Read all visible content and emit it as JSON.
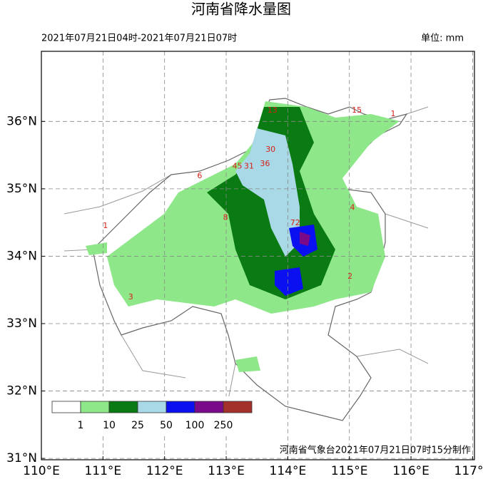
{
  "map": {
    "title": "河南省降水量图",
    "subtitle": "2021年07月21日04时-2021年07月21日07时",
    "unit": "单位: mm",
    "footer": "河南省气象台2021年07月21日07时15分制作",
    "xlim": [
      110,
      117.03
    ],
    "ylim": [
      30.98,
      37.04
    ],
    "xticks": [
      {
        "value": 110,
        "label": "110°E"
      },
      {
        "value": 111,
        "label": "111°E"
      },
      {
        "value": 112,
        "label": "112°E"
      },
      {
        "value": 113,
        "label": "113°E"
      },
      {
        "value": 114,
        "label": "114°E"
      },
      {
        "value": 115,
        "label": "115°E"
      },
      {
        "value": 116,
        "label": "116°E"
      },
      {
        "value": 117,
        "label": "117°E"
      }
    ],
    "yticks": [
      {
        "value": 31,
        "label": "31°N"
      },
      {
        "value": 32,
        "label": "32°N"
      },
      {
        "value": 33,
        "label": "33°N"
      },
      {
        "value": 34,
        "label": "34°N"
      },
      {
        "value": 35,
        "label": "35°N"
      },
      {
        "value": 36,
        "label": "36°N"
      }
    ],
    "grid": true,
    "legend": {
      "colors": [
        "#ffffff",
        "#8ee88a",
        "#0a7a12",
        "#a9d8e6",
        "#0a10f0",
        "#7a0a8a",
        "#a3302a"
      ],
      "labels": [
        1,
        10,
        25,
        50,
        100,
        250
      ]
    },
    "stations": [
      {
        "lon": 114.12,
        "lat": 34.49,
        "value": 72
      },
      {
        "lon": 113.18,
        "lat": 35.33,
        "value": 45
      },
      {
        "lon": 113.63,
        "lat": 35.37,
        "value": 36
      },
      {
        "lon": 113.72,
        "lat": 35.58,
        "value": 30
      },
      {
        "lon": 113.37,
        "lat": 35.33,
        "value": 31
      },
      {
        "lon": 113.75,
        "lat": 36.16,
        "value": 13
      },
      {
        "lon": 115.12,
        "lat": 36.16,
        "value": 15
      },
      {
        "lon": 115.71,
        "lat": 36.11,
        "value": 1
      },
      {
        "lon": 111.45,
        "lat": 33.39,
        "value": 3
      },
      {
        "lon": 111.04,
        "lat": 34.45,
        "value": 1
      },
      {
        "lon": 115.05,
        "lat": 34.72,
        "value": 4
      },
      {
        "lon": 115.01,
        "lat": 33.7,
        "value": 2
      },
      {
        "lon": 112.57,
        "lat": 35.19,
        "value": 6
      },
      {
        "lon": 112.99,
        "lat": 34.57,
        "value": 8
      }
    ]
  }
}
